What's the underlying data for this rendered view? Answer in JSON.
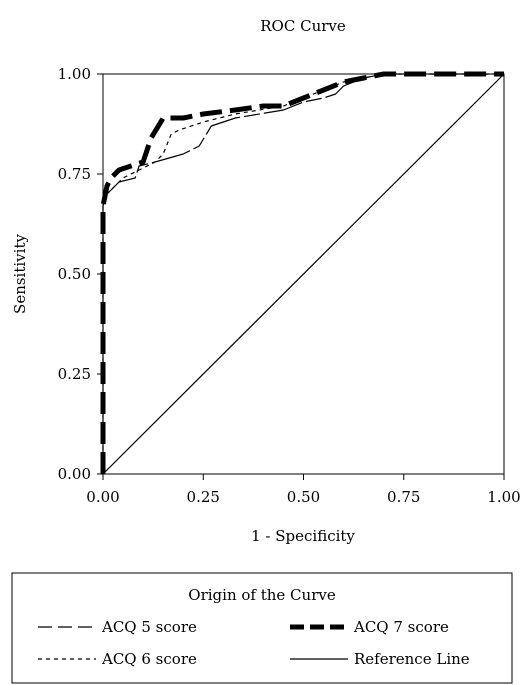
{
  "chart_data": {
    "type": "line",
    "title": "ROC Curve",
    "xlabel": "1 - Specificity",
    "ylabel": "Sensitivity",
    "xlim": [
      0,
      1
    ],
    "ylim": [
      0,
      1
    ],
    "x_ticks": [
      "0.00",
      "0.25",
      "0.50",
      "0.75",
      "1.00"
    ],
    "y_ticks": [
      "0.00",
      "0.25",
      "0.50",
      "0.75",
      "1.00"
    ],
    "grid": false,
    "legend": {
      "title": "Origin of the Curve",
      "placement": "bottom",
      "entries": [
        "ACQ 5 score",
        "ACQ 7 score",
        "ACQ 6 score",
        "Reference Line"
      ]
    },
    "series": [
      {
        "name": "ACQ 5 score",
        "style": "thin-long-dash",
        "x": [
          0,
          0,
          0.01,
          0.02,
          0.04,
          0.08,
          0.09,
          0.13,
          0.2,
          0.24,
          0.27,
          0.33,
          0.45,
          0.5,
          0.55,
          0.58,
          0.6,
          0.65,
          0.7,
          0.8,
          0.9,
          1.0
        ],
        "y": [
          0,
          0.67,
          0.7,
          0.71,
          0.73,
          0.74,
          0.77,
          0.78,
          0.8,
          0.82,
          0.87,
          0.89,
          0.91,
          0.93,
          0.94,
          0.95,
          0.97,
          0.99,
          1.0,
          1.0,
          1.0,
          1.0
        ]
      },
      {
        "name": "ACQ 6 score",
        "style": "thin-short-dash",
        "x": [
          0,
          0,
          0.01,
          0.03,
          0.05,
          0.09,
          0.13,
          0.15,
          0.17,
          0.19,
          0.25,
          0.33,
          0.45,
          0.5,
          0.55,
          0.6,
          0.65,
          0.7,
          0.85,
          1.0
        ],
        "y": [
          0,
          0.67,
          0.7,
          0.72,
          0.74,
          0.76,
          0.78,
          0.8,
          0.85,
          0.86,
          0.88,
          0.9,
          0.92,
          0.94,
          0.96,
          0.98,
          0.99,
          1.0,
          1.0,
          1.0
        ]
      },
      {
        "name": "ACQ 7 score",
        "style": "thick-dash",
        "x": [
          0,
          0,
          0.01,
          0.02,
          0.04,
          0.1,
          0.12,
          0.15,
          0.2,
          0.25,
          0.33,
          0.4,
          0.45,
          0.5,
          0.55,
          0.6,
          0.65,
          0.7,
          0.8,
          0.9,
          1.0
        ],
        "y": [
          0,
          0.67,
          0.72,
          0.74,
          0.76,
          0.78,
          0.84,
          0.89,
          0.89,
          0.9,
          0.91,
          0.92,
          0.92,
          0.94,
          0.96,
          0.98,
          0.99,
          1.0,
          1.0,
          1.0,
          1.0
        ]
      },
      {
        "name": "Reference Line",
        "style": "solid",
        "x": [
          0,
          1
        ],
        "y": [
          0,
          1
        ]
      }
    ]
  }
}
